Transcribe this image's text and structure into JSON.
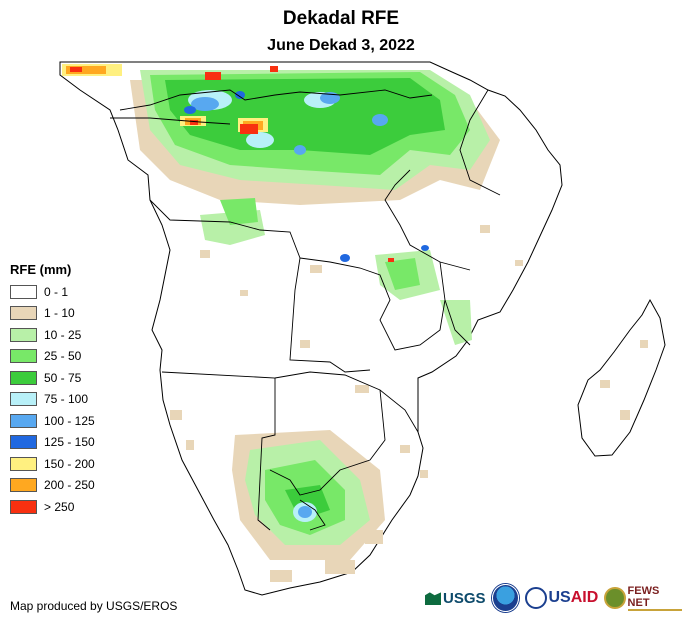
{
  "header": {
    "title": "Dekadal RFE",
    "subtitle": "June Dekad 3, 2022"
  },
  "legend": {
    "title": "RFE (mm)",
    "items": [
      {
        "label": "0 - 1",
        "color": "#ffffff"
      },
      {
        "label": "1 - 10",
        "color": "#e8d6b8"
      },
      {
        "label": "10 - 25",
        "color": "#b8f0a8"
      },
      {
        "label": "25 - 50",
        "color": "#78e868"
      },
      {
        "label": "50 - 75",
        "color": "#3ccc3c"
      },
      {
        "label": "75 - 100",
        "color": "#b8f0f8"
      },
      {
        "label": "100 - 125",
        "color": "#58a8f0"
      },
      {
        "label": "125 - 150",
        "color": "#2068e0"
      },
      {
        "label": "150 - 200",
        "color": "#fff080"
      },
      {
        "label": "200 - 250",
        "color": "#ffa820"
      },
      {
        "label": "> 250",
        "color": "#f83010"
      }
    ]
  },
  "footer": {
    "credit": "Map produced by USGS/EROS"
  },
  "logos": {
    "usgs": "USGS",
    "usaid_a": "US",
    "usaid_b": "AID",
    "fews": "FEWS NET"
  }
}
